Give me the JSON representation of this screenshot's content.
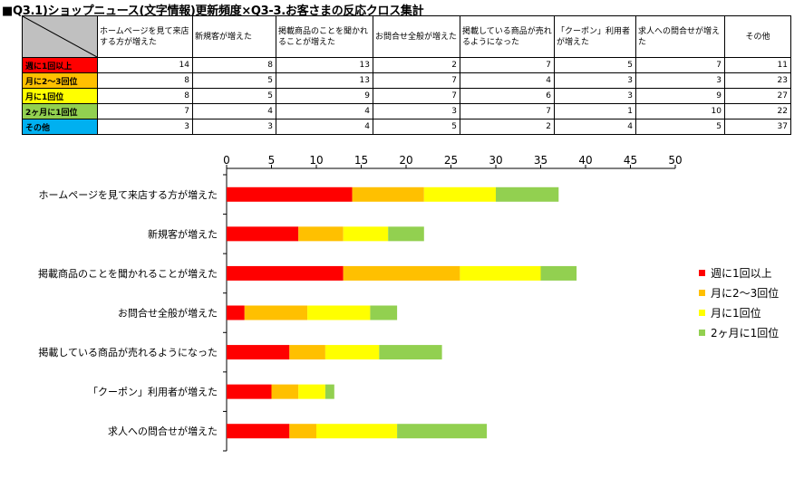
{
  "title": "■Q3.1)ショップニュース(文字情報)更新頻度×Q3-3.お客さまの反応クロス集計",
  "table": {
    "columns": [
      "ホームページを見て来店する方が増えた",
      "新規客が増えた",
      "掲載商品のことを聞かれることが増えた",
      "お問合せ全般が増えた",
      "掲載している商品が売れるようになった",
      "「クーポン」利用者が増えた",
      "求人への問合せが増えた",
      "その他"
    ],
    "rows": [
      {
        "label": "週に1回以上",
        "color": "#ff0000",
        "values": [
          "14",
          "8",
          "13",
          "2",
          "7",
          "5",
          "7",
          "11"
        ]
      },
      {
        "label": "月に2〜3回位",
        "color": "#ffc000",
        "values": [
          "8",
          "5",
          "13",
          "7",
          "4",
          "3",
          "3",
          "23"
        ]
      },
      {
        "label": "月に1回位",
        "color": "#ffff00",
        "values": [
          "8",
          "5",
          "9",
          "7",
          "6",
          "3",
          "9",
          "27"
        ]
      },
      {
        "label": "2ヶ月に1回位",
        "color": "#92d050",
        "values": [
          "7",
          "4",
          "4",
          "3",
          "7",
          "1",
          "10",
          "22"
        ]
      },
      {
        "label": "その他",
        "color": "#00b0f0",
        "values": [
          "3",
          "3",
          "4",
          "5",
          "2",
          "4",
          "5",
          "37"
        ]
      }
    ]
  },
  "chart_data": {
    "type": "bar",
    "orientation": "horizontal",
    "stacked": true,
    "categories": [
      "ホームページを見て来店する方が増えた",
      "新規客が増えた",
      "掲載商品のことを聞かれることが増えた",
      "お問合せ全般が増えた",
      "掲載している商品が売れるようになった",
      "「クーポン」利用者が増えた",
      "求人への問合せが増えた"
    ],
    "series": [
      {
        "name": "週に1回以上",
        "color": "#ff0000",
        "values": [
          14,
          8,
          13,
          2,
          7,
          5,
          7
        ]
      },
      {
        "name": "月に2〜3回位",
        "color": "#ffc000",
        "values": [
          8,
          5,
          13,
          7,
          4,
          3,
          3
        ]
      },
      {
        "name": "月に1回位",
        "color": "#ffff00",
        "values": [
          8,
          5,
          9,
          7,
          6,
          3,
          9
        ]
      },
      {
        "name": "2ヶ月に1回位",
        "color": "#92d050",
        "values": [
          7,
          4,
          4,
          3,
          7,
          1,
          10
        ]
      }
    ],
    "xlim": [
      0,
      50
    ],
    "xticks": [
      0,
      5,
      10,
      15,
      20,
      25,
      30,
      35,
      40,
      45,
      50
    ],
    "axis_position": "top",
    "grid": false,
    "legend_position": "right"
  }
}
